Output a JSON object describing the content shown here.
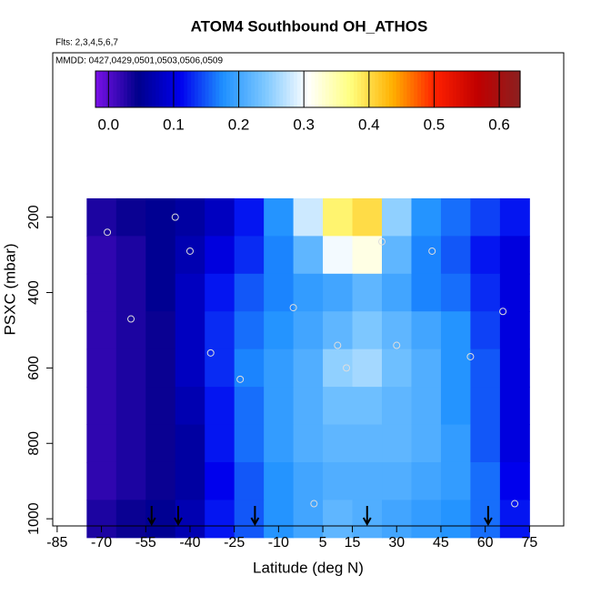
{
  "chart_data": {
    "type": "heatmap",
    "title": "ATOM4 Southbound OH_ATHOS",
    "annotations": [
      "Flts: 2,3,4,5,6,7",
      "MMDD: 0427,0429,0501,0503,0506,0509"
    ],
    "x_label": "Latitude (deg N)",
    "y_label": "PSXC (mbar)",
    "xlim": [
      -86.5,
      86.6
    ],
    "ylim": [
      1019,
      -236
    ],
    "xticks": [
      -85,
      -70,
      -55,
      -40,
      -25,
      -10,
      5,
      15,
      30,
      45,
      60,
      75
    ],
    "yticks": [
      200,
      400,
      600,
      800,
      1000
    ],
    "x": [
      -70,
      -60,
      -50,
      -40,
      -30,
      -20,
      -10,
      0,
      10,
      20,
      30,
      40,
      50,
      60,
      70
    ],
    "y": [
      200,
      300,
      400,
      500,
      600,
      700,
      800,
      900,
      1000
    ],
    "z": [
      [
        0.03,
        0.04,
        0.05,
        0.06,
        0.08,
        0.12,
        0.18,
        0.28,
        0.38,
        0.4,
        0.25,
        0.18,
        0.16,
        0.14,
        0.12
      ],
      [
        0.02,
        0.03,
        0.05,
        0.07,
        0.1,
        0.13,
        0.17,
        0.22,
        0.3,
        0.32,
        0.22,
        0.17,
        0.15,
        0.12,
        0.1
      ],
      [
        0.02,
        0.03,
        0.05,
        0.08,
        0.12,
        0.15,
        0.17,
        0.19,
        0.2,
        0.22,
        0.2,
        0.17,
        0.16,
        0.13,
        0.1
      ],
      [
        0.02,
        0.03,
        0.04,
        0.08,
        0.13,
        0.16,
        0.18,
        0.2,
        0.22,
        0.24,
        0.22,
        0.2,
        0.18,
        0.14,
        0.1
      ],
      [
        0.02,
        0.03,
        0.04,
        0.08,
        0.13,
        0.17,
        0.19,
        0.21,
        0.25,
        0.26,
        0.23,
        0.21,
        0.18,
        0.15,
        0.1
      ],
      [
        0.02,
        0.03,
        0.04,
        0.07,
        0.12,
        0.16,
        0.19,
        0.21,
        0.23,
        0.23,
        0.22,
        0.21,
        0.18,
        0.15,
        0.1
      ],
      [
        0.02,
        0.03,
        0.04,
        0.06,
        0.12,
        0.16,
        0.19,
        0.21,
        0.22,
        0.22,
        0.22,
        0.21,
        0.19,
        0.15,
        0.1
      ],
      [
        0.02,
        0.03,
        0.04,
        0.06,
        0.11,
        0.15,
        0.18,
        0.2,
        0.21,
        0.21,
        0.21,
        0.2,
        0.19,
        0.16,
        0.11
      ],
      [
        0.03,
        0.04,
        0.05,
        0.07,
        0.12,
        0.15,
        0.18,
        0.2,
        0.22,
        0.21,
        0.2,
        0.19,
        0.18,
        0.16,
        0.12
      ]
    ],
    "clim": [
      -0.02,
      0.632
    ],
    "cticks": [
      {
        "value": 0,
        "label": "0.0"
      },
      0.1,
      0.2,
      0.3,
      0.4,
      0.5,
      0.6
    ],
    "colors": [
      "#7a10e8",
      "#00008b",
      "#0000ee",
      "#1e90ff",
      "#7ec8ff",
      "#ffffff",
      "#ffff80",
      "#ffb000",
      "#ff2000",
      "#c00000",
      "#8b2020"
    ],
    "obs_x": [
      -68,
      -60,
      -45,
      -40,
      -33,
      -23,
      -5,
      2,
      10,
      25,
      42,
      55,
      66,
      70,
      30,
      13
    ],
    "obs_y": [
      240,
      470,
      200,
      290,
      560,
      630,
      440,
      960,
      540,
      265,
      290,
      570,
      450,
      960,
      540,
      600
    ],
    "arrows_x": [
      -53,
      -44,
      -18,
      20,
      61
    ]
  }
}
